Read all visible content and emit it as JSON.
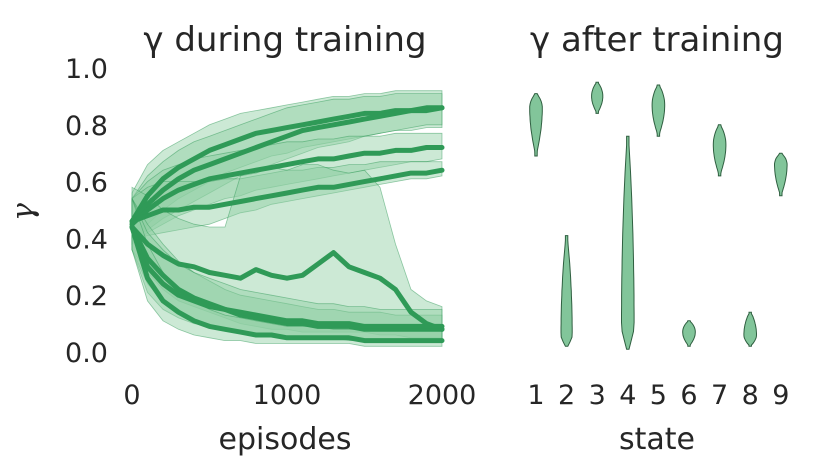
{
  "figure": {
    "colors": {
      "accent": "#2f9a57",
      "band_fill": "#8fceA2",
      "violin_fill": "#82c59a",
      "violin_edge": "#2f5f40",
      "text": "#262626"
    }
  },
  "chart_data": [
    {
      "type": "line",
      "title": "γ during training",
      "xlabel": "episodes",
      "ylabel": "γ",
      "xlim": [
        0,
        2000
      ],
      "ylim": [
        0.0,
        1.0
      ],
      "xticks": [
        "0",
        "1000",
        "2000"
      ],
      "yticks": [
        "0.0",
        "0.2",
        "0.4",
        "0.6",
        "0.8",
        "1.0"
      ],
      "grid": false,
      "legend": "none",
      "x": [
        0,
        100,
        200,
        300,
        400,
        500,
        600,
        700,
        800,
        900,
        1000,
        1100,
        1200,
        1300,
        1400,
        1500,
        1600,
        1700,
        1800,
        1900,
        2000
      ],
      "series": [
        {
          "values": [
            0.46,
            0.55,
            0.61,
            0.65,
            0.68,
            0.71,
            0.73,
            0.75,
            0.77,
            0.78,
            0.79,
            0.8,
            0.81,
            0.82,
            0.83,
            0.84,
            0.84,
            0.85,
            0.85,
            0.86,
            0.86
          ],
          "lower": [
            0.38,
            0.45,
            0.5,
            0.54,
            0.57,
            0.6,
            0.63,
            0.65,
            0.67,
            0.69,
            0.7,
            0.72,
            0.73,
            0.74,
            0.75,
            0.76,
            0.77,
            0.78,
            0.78,
            0.79,
            0.79
          ],
          "upper": [
            0.56,
            0.66,
            0.71,
            0.74,
            0.77,
            0.8,
            0.82,
            0.84,
            0.85,
            0.86,
            0.87,
            0.88,
            0.89,
            0.9,
            0.9,
            0.91,
            0.91,
            0.92,
            0.92,
            0.92,
            0.92
          ]
        },
        {
          "values": [
            0.46,
            0.52,
            0.57,
            0.61,
            0.64,
            0.66,
            0.68,
            0.7,
            0.72,
            0.74,
            0.76,
            0.78,
            0.79,
            0.8,
            0.81,
            0.82,
            0.83,
            0.84,
            0.85,
            0.85,
            0.86
          ],
          "lower": [
            0.4,
            0.43,
            0.47,
            0.5,
            0.53,
            0.56,
            0.59,
            0.62,
            0.64,
            0.66,
            0.68,
            0.7,
            0.72,
            0.73,
            0.74,
            0.76,
            0.77,
            0.78,
            0.79,
            0.8,
            0.8
          ],
          "upper": [
            0.54,
            0.62,
            0.67,
            0.71,
            0.74,
            0.76,
            0.78,
            0.8,
            0.82,
            0.84,
            0.86,
            0.87,
            0.88,
            0.89,
            0.89,
            0.9,
            0.9,
            0.91,
            0.91,
            0.91,
            0.91
          ]
        },
        {
          "values": [
            0.45,
            0.5,
            0.54,
            0.57,
            0.59,
            0.61,
            0.62,
            0.63,
            0.64,
            0.65,
            0.66,
            0.67,
            0.68,
            0.68,
            0.69,
            0.7,
            0.7,
            0.71,
            0.71,
            0.72,
            0.72
          ],
          "lower": [
            0.38,
            0.42,
            0.45,
            0.48,
            0.5,
            0.52,
            0.54,
            0.55,
            0.57,
            0.58,
            0.59,
            0.6,
            0.61,
            0.62,
            0.63,
            0.64,
            0.65,
            0.66,
            0.67,
            0.67,
            0.68
          ],
          "upper": [
            0.54,
            0.6,
            0.64,
            0.66,
            0.68,
            0.69,
            0.7,
            0.71,
            0.72,
            0.73,
            0.74,
            0.74,
            0.75,
            0.75,
            0.76,
            0.76,
            0.76,
            0.77,
            0.77,
            0.77,
            0.77
          ]
        },
        {
          "values": [
            0.46,
            0.48,
            0.5,
            0.5,
            0.51,
            0.51,
            0.52,
            0.53,
            0.54,
            0.55,
            0.56,
            0.57,
            0.58,
            0.58,
            0.59,
            0.6,
            0.61,
            0.62,
            0.63,
            0.63,
            0.64
          ],
          "lower": [
            0.4,
            0.41,
            0.42,
            0.43,
            0.44,
            0.45,
            0.47,
            0.49,
            0.5,
            0.52,
            0.53,
            0.54,
            0.55,
            0.56,
            0.57,
            0.58,
            0.59,
            0.6,
            0.61,
            0.61,
            0.62
          ],
          "upper": [
            0.54,
            0.58,
            0.6,
            0.6,
            0.6,
            0.6,
            0.61,
            0.61,
            0.62,
            0.63,
            0.64,
            0.64,
            0.65,
            0.65,
            0.66,
            0.66,
            0.67,
            0.67,
            0.67,
            0.67,
            0.67
          ]
        },
        {
          "values": [
            0.44,
            0.38,
            0.34,
            0.31,
            0.3,
            0.28,
            0.27,
            0.26,
            0.29,
            0.27,
            0.26,
            0.27,
            0.31,
            0.35,
            0.3,
            0.28,
            0.26,
            0.22,
            0.14,
            0.1,
            0.08
          ],
          "lower": [
            0.36,
            0.28,
            0.22,
            0.18,
            0.16,
            0.14,
            0.12,
            0.1,
            0.09,
            0.08,
            0.08,
            0.07,
            0.07,
            0.07,
            0.07,
            0.07,
            0.06,
            0.06,
            0.05,
            0.05,
            0.05
          ],
          "upper": [
            0.58,
            0.55,
            0.5,
            0.47,
            0.45,
            0.44,
            0.44,
            0.62,
            0.63,
            0.65,
            0.64,
            0.66,
            0.66,
            0.64,
            0.63,
            0.64,
            0.58,
            0.38,
            0.22,
            0.18,
            0.16
          ]
        },
        {
          "values": [
            0.44,
            0.33,
            0.27,
            0.22,
            0.19,
            0.17,
            0.15,
            0.13,
            0.12,
            0.11,
            0.1,
            0.1,
            0.09,
            0.09,
            0.09,
            0.08,
            0.08,
            0.08,
            0.08,
            0.08,
            0.08
          ],
          "lower": [
            0.36,
            0.24,
            0.18,
            0.14,
            0.11,
            0.09,
            0.08,
            0.07,
            0.06,
            0.06,
            0.05,
            0.05,
            0.05,
            0.05,
            0.05,
            0.04,
            0.04,
            0.04,
            0.04,
            0.04,
            0.04
          ],
          "upper": [
            0.54,
            0.45,
            0.38,
            0.32,
            0.28,
            0.25,
            0.22,
            0.2,
            0.19,
            0.18,
            0.17,
            0.16,
            0.15,
            0.15,
            0.14,
            0.14,
            0.14,
            0.13,
            0.13,
            0.13,
            0.13
          ]
        },
        {
          "values": [
            0.44,
            0.3,
            0.24,
            0.2,
            0.18,
            0.16,
            0.15,
            0.14,
            0.13,
            0.12,
            0.11,
            0.11,
            0.1,
            0.1,
            0.1,
            0.09,
            0.09,
            0.09,
            0.09,
            0.09,
            0.09
          ],
          "lower": [
            0.36,
            0.21,
            0.15,
            0.12,
            0.1,
            0.09,
            0.08,
            0.07,
            0.06,
            0.06,
            0.05,
            0.05,
            0.05,
            0.05,
            0.04,
            0.04,
            0.04,
            0.04,
            0.04,
            0.04,
            0.04
          ],
          "upper": [
            0.54,
            0.42,
            0.36,
            0.31,
            0.28,
            0.26,
            0.24,
            0.22,
            0.21,
            0.2,
            0.19,
            0.18,
            0.17,
            0.17,
            0.16,
            0.16,
            0.15,
            0.15,
            0.15,
            0.15,
            0.15
          ]
        },
        {
          "values": [
            0.44,
            0.26,
            0.18,
            0.14,
            0.11,
            0.09,
            0.08,
            0.07,
            0.06,
            0.06,
            0.05,
            0.05,
            0.05,
            0.05,
            0.05,
            0.04,
            0.04,
            0.04,
            0.04,
            0.04,
            0.04
          ],
          "lower": [
            0.36,
            0.18,
            0.11,
            0.08,
            0.06,
            0.05,
            0.04,
            0.04,
            0.03,
            0.03,
            0.03,
            0.03,
            0.03,
            0.03,
            0.03,
            0.02,
            0.02,
            0.02,
            0.02,
            0.02,
            0.02
          ],
          "upper": [
            0.54,
            0.38,
            0.28,
            0.22,
            0.18,
            0.15,
            0.13,
            0.12,
            0.11,
            0.1,
            0.09,
            0.09,
            0.09,
            0.08,
            0.08,
            0.08,
            0.08,
            0.08,
            0.08,
            0.08,
            0.08
          ]
        }
      ]
    },
    {
      "type": "violin",
      "title": "γ after training",
      "xlabel": "state",
      "ylabel": "",
      "ylim": [
        0.0,
        1.0
      ],
      "grid": false,
      "legend": "none",
      "categories": [
        "1",
        "2",
        "3",
        "4",
        "5",
        "6",
        "7",
        "8",
        "9"
      ],
      "violins": [
        {
          "min": 0.69,
          "max": 0.91,
          "peak": 0.86,
          "maxWidth": 0.9
        },
        {
          "min": 0.02,
          "max": 0.41,
          "peak": 0.06,
          "maxWidth": 0.8
        },
        {
          "min": 0.84,
          "max": 0.95,
          "peak": 0.9,
          "maxWidth": 0.8
        },
        {
          "min": 0.01,
          "max": 0.76,
          "peak": 0.1,
          "maxWidth": 0.9
        },
        {
          "min": 0.76,
          "max": 0.94,
          "peak": 0.87,
          "maxWidth": 0.9
        },
        {
          "min": 0.02,
          "max": 0.11,
          "peak": 0.07,
          "maxWidth": 0.9
        },
        {
          "min": 0.62,
          "max": 0.8,
          "peak": 0.73,
          "maxWidth": 0.9
        },
        {
          "min": 0.02,
          "max": 0.14,
          "peak": 0.06,
          "maxWidth": 0.9
        },
        {
          "min": 0.55,
          "max": 0.7,
          "peak": 0.66,
          "maxWidth": 0.9
        }
      ]
    }
  ]
}
